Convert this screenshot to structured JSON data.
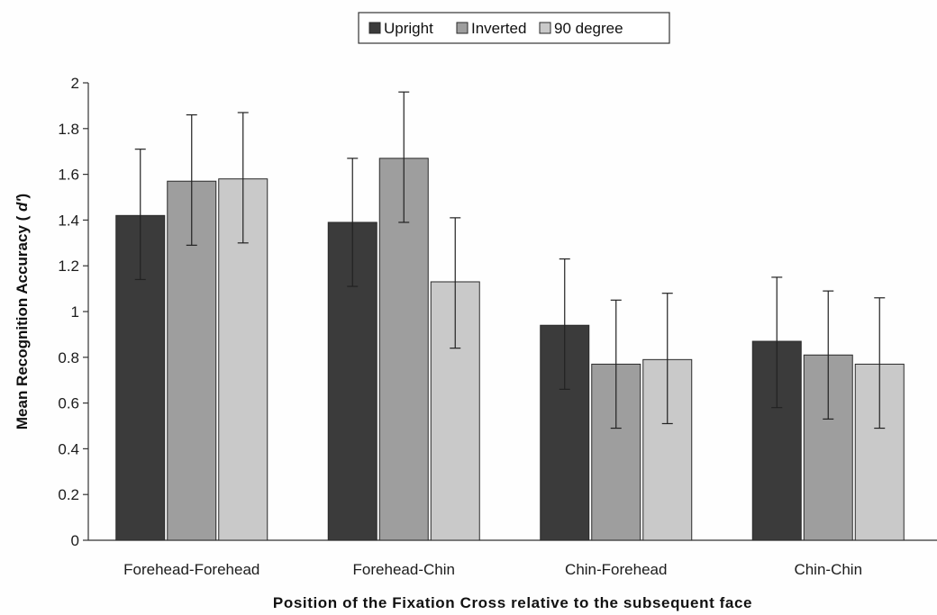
{
  "chart_data": {
    "type": "bar",
    "categories": [
      "Forehead-Forehead",
      "Forehead-Chin",
      "Chin-Forehead",
      "Chin-Chin"
    ],
    "series": [
      {
        "name": "Upright",
        "values": [
          1.42,
          1.39,
          0.94,
          0.87
        ],
        "error_low": [
          1.14,
          1.11,
          0.66,
          0.58
        ],
        "error_high": [
          1.71,
          1.67,
          1.23,
          1.15
        ],
        "color": "#3b3b3b"
      },
      {
        "name": "Inverted",
        "values": [
          1.57,
          1.67,
          0.77,
          0.81
        ],
        "error_low": [
          1.29,
          1.39,
          0.49,
          0.53
        ],
        "error_high": [
          1.86,
          1.96,
          1.05,
          1.09
        ],
        "color": "#9e9e9e"
      },
      {
        "name": "90 degree",
        "values": [
          1.58,
          1.13,
          0.79,
          0.77
        ],
        "error_low": [
          1.3,
          0.84,
          0.51,
          0.49
        ],
        "error_high": [
          1.87,
          1.41,
          1.08,
          1.06
        ],
        "color": "#c9c9c9"
      }
    ],
    "title": "",
    "xlabel": "Position of the Fixation Cross relative to the subsequent face",
    "ylabel_parts": [
      "Mean Recognition Accuracy ( ",
      "d'",
      ")"
    ],
    "ylim": [
      0,
      2
    ],
    "yticks": [
      "0",
      "0.2",
      "0.4",
      "0.6",
      "0.8",
      "1",
      "1.2",
      "1.4",
      "1.6",
      "1.8",
      "2"
    ],
    "grid": false,
    "legend_position": "top"
  }
}
